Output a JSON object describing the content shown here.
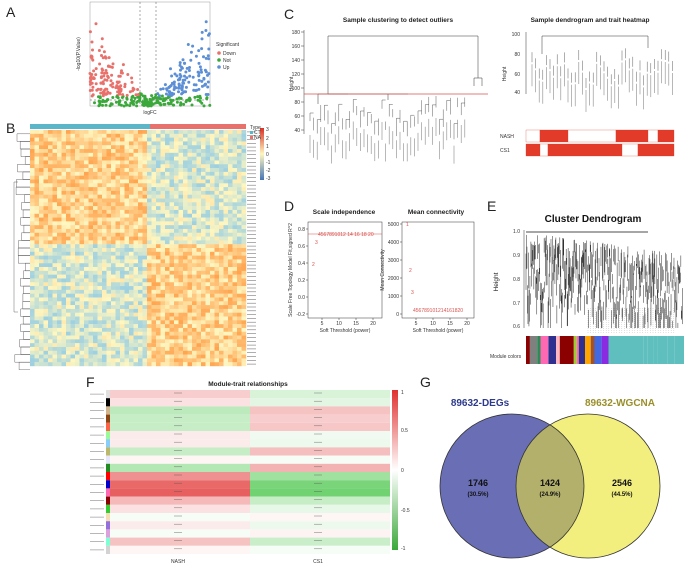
{
  "panels": {
    "A": "A",
    "B": "B",
    "C": "C",
    "D": "D",
    "E": "E",
    "F": "F",
    "G": "G"
  },
  "volcano": {
    "xlabel": "logFC",
    "ylabel": "-log10(P.Value)",
    "legend_title": "Significant",
    "legend": [
      {
        "label": "Down",
        "color": "#e8716b"
      },
      {
        "label": "Not",
        "color": "#3aa83a"
      },
      {
        "label": "Up",
        "color": "#5c8fd6"
      }
    ]
  },
  "heatmap": {
    "legend_title": "Type",
    "groups": [
      {
        "label": "CT",
        "color": "#5bb7c8"
      },
      {
        "label": "NA",
        "color": "#e8716b"
      }
    ],
    "scale_ticks": [
      "3",
      "2",
      "1",
      "0",
      "-1",
      "-2",
      "-3"
    ]
  },
  "clustering": {
    "title": "Sample clustering to detect outliers",
    "ylabel": "Height",
    "yticks": [
      "180",
      "160",
      "140",
      "120",
      "100",
      "80",
      "60",
      "40"
    ]
  },
  "trait": {
    "title": "Sample dendrogram and trait heatmap",
    "ylabel": "Height",
    "yticks": [
      "100",
      "80",
      "60",
      "40"
    ],
    "rows": [
      "NASH",
      "CS1"
    ]
  },
  "scale_independence": {
    "title": "Scale independence",
    "xlabel": "Soft Threshold (power)",
    "ylabel": "Scale Free Topology Model Fit,signed R^2",
    "xticks": [
      "5",
      "10",
      "15",
      "20"
    ],
    "yticks": [
      "-0.2",
      "0.0",
      "0.2",
      "0.4",
      "0.6",
      "0.8"
    ],
    "labels": [
      "1",
      "2",
      "3",
      "4567891012 14 16 18 20"
    ]
  },
  "mean_connectivity": {
    "title": "Mean connectivity",
    "xlabel": "Soft Threshold (power)",
    "ylabel": "Mean Connectivity",
    "xticks": [
      "5",
      "10",
      "15",
      "20"
    ],
    "yticks": [
      "0",
      "1000",
      "2000",
      "3000",
      "4000",
      "5000"
    ],
    "labels": [
      "1",
      "2",
      "3",
      "456789101214161820"
    ]
  },
  "cluster_dendrogram": {
    "title": "Cluster Dendrogram",
    "ylabel": "Height",
    "yticks": [
      "1.0",
      "0.9",
      "0.8",
      "0.7",
      "0.6"
    ],
    "module_label": "Module colors"
  },
  "module_trait": {
    "title": "Module-trait relationships",
    "columns": [
      "NASH",
      "CS1"
    ],
    "scale_ticks": [
      "1",
      "0.5",
      "0",
      "-0.5",
      "-1"
    ]
  },
  "venn": {
    "left_title": "89632-DEGs",
    "right_title": "89632-WGCNA",
    "left_count": "1746",
    "left_pct": "(30.5%)",
    "mid_count": "1424",
    "mid_pct": "(24.9%)",
    "right_count": "2546",
    "right_pct": "(44.5%)",
    "left_color": "#6a6fb5",
    "right_color": "#f2ef7e",
    "overlap_color": "#b2b06b"
  }
}
